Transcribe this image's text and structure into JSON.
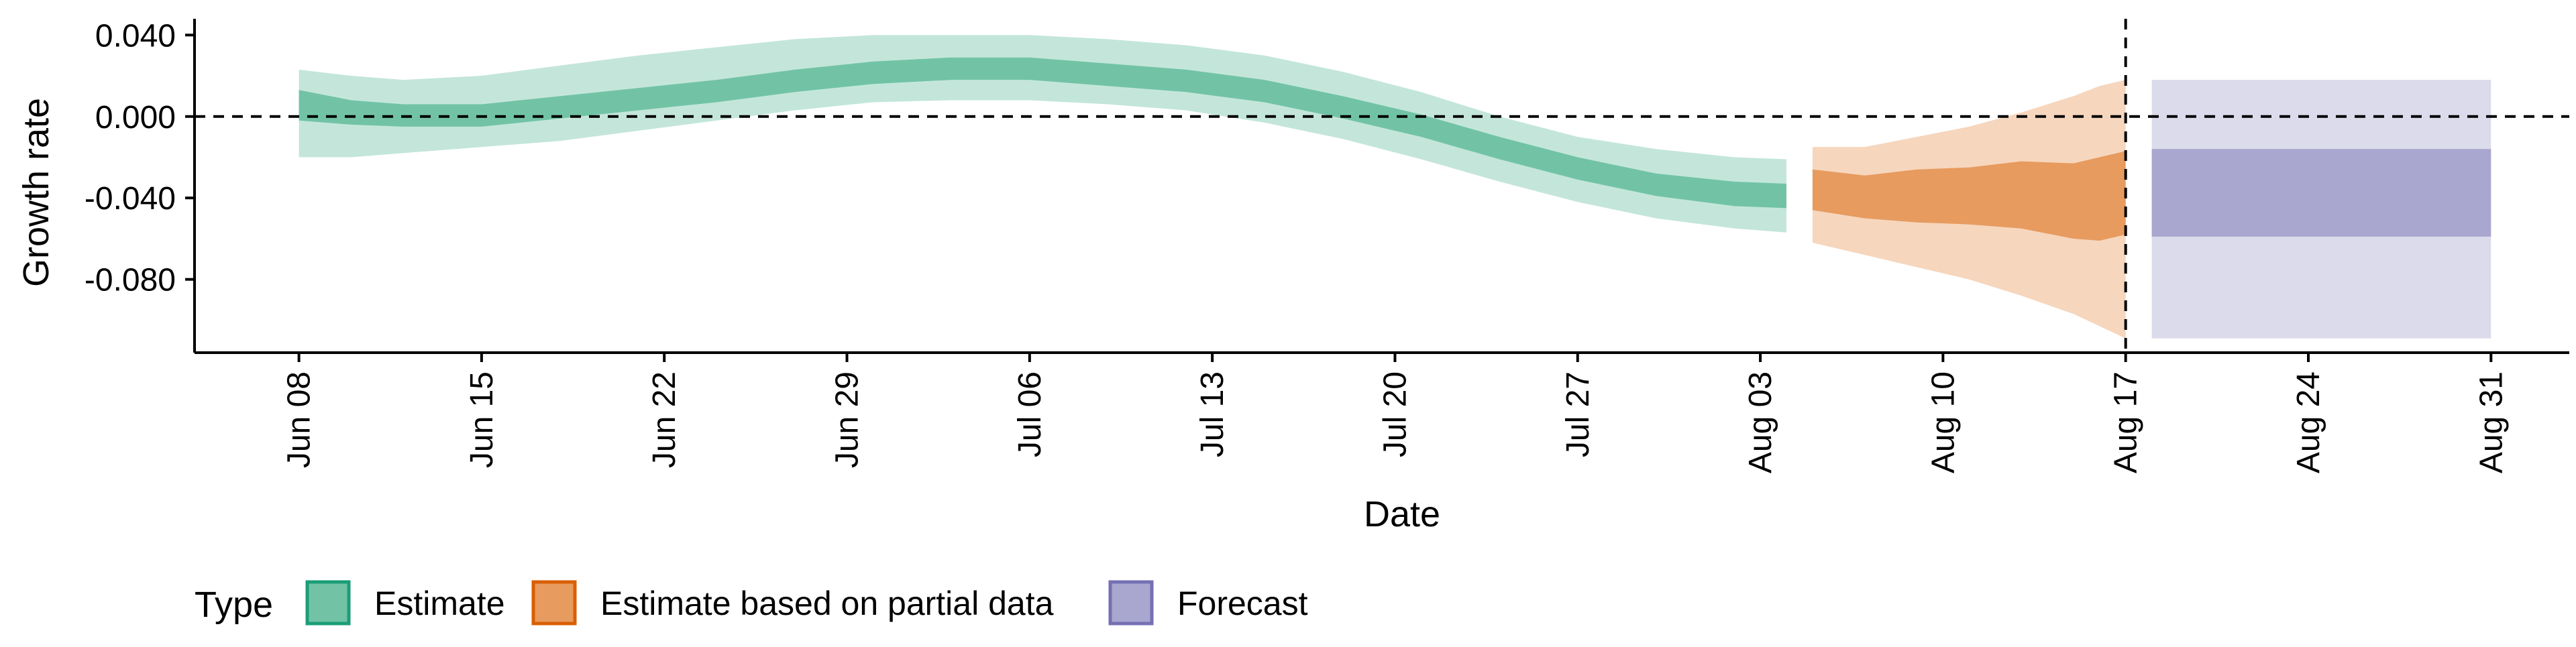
{
  "chart_data": {
    "type": "area",
    "title": "",
    "xlabel": "Date",
    "ylabel": "Growth rate",
    "x_tick_labels": [
      "Jun 08",
      "Jun 15",
      "Jun 22",
      "Jun 29",
      "Jul 06",
      "Jul 13",
      "Jul 20",
      "Jul 27",
      "Aug 03",
      "Aug 10",
      "Aug 17",
      "Aug 24",
      "Aug 31"
    ],
    "y_tick_labels": [
      "0.040",
      "0.000",
      "-0.040",
      "-0.080"
    ],
    "y_ticks": [
      0.04,
      0.0,
      -0.04,
      -0.08
    ],
    "xlim": [
      "2020-06-04",
      "2020-09-03"
    ],
    "ylim": [
      -0.116,
      0.048
    ],
    "reference_lines": {
      "horizontal_y": 0.0,
      "vertical_x": "2020-08-17",
      "style": "dashed"
    },
    "grid": false,
    "legend": {
      "title": "Type",
      "position": "bottom-left",
      "items": [
        {
          "name": "Estimate",
          "fill": "#72c3a6",
          "stroke": "#1b9e77"
        },
        {
          "name": "Estimate based on partial data",
          "fill": "#e79b5f",
          "stroke": "#d95f02"
        },
        {
          "name": "Forecast",
          "fill": "#a9a6cf",
          "stroke": "#7570b3"
        }
      ]
    },
    "series": [
      {
        "name": "Estimate",
        "color_inner": "#72c3a6",
        "color_outer": "#c4e6da",
        "x": [
          "2020-06-08",
          "2020-06-10",
          "2020-06-12",
          "2020-06-15",
          "2020-06-18",
          "2020-06-21",
          "2020-06-24",
          "2020-06-27",
          "2020-06-30",
          "2020-07-03",
          "2020-07-06",
          "2020-07-09",
          "2020-07-12",
          "2020-07-15",
          "2020-07-18",
          "2020-07-21",
          "2020-07-24",
          "2020-07-27",
          "2020-07-30",
          "2020-08-02",
          "2020-08-04"
        ],
        "inner_upper": [
          0.013,
          0.008,
          0.006,
          0.006,
          0.01,
          0.014,
          0.018,
          0.023,
          0.027,
          0.029,
          0.029,
          0.026,
          0.023,
          0.018,
          0.01,
          0.001,
          -0.01,
          -0.02,
          -0.028,
          -0.032,
          -0.033
        ],
        "inner_lower": [
          -0.002,
          -0.004,
          -0.005,
          -0.005,
          -0.001,
          0.003,
          0.007,
          0.012,
          0.016,
          0.018,
          0.018,
          0.015,
          0.012,
          0.007,
          -0.001,
          -0.01,
          -0.021,
          -0.031,
          -0.039,
          -0.044,
          -0.045
        ],
        "outer_upper": [
          0.023,
          0.02,
          0.018,
          0.02,
          0.025,
          0.03,
          0.034,
          0.038,
          0.04,
          0.04,
          0.04,
          0.038,
          0.035,
          0.03,
          0.022,
          0.012,
          0.0,
          -0.01,
          -0.016,
          -0.02,
          -0.021
        ],
        "outer_lower": [
          -0.02,
          -0.02,
          -0.018,
          -0.015,
          -0.012,
          -0.007,
          -0.002,
          0.003,
          0.007,
          0.008,
          0.008,
          0.006,
          0.003,
          -0.003,
          -0.011,
          -0.021,
          -0.032,
          -0.042,
          -0.05,
          -0.055,
          -0.057
        ]
      },
      {
        "name": "Estimate based on partial data",
        "color_inner": "#e79b5f",
        "color_outer": "#f6d6bd",
        "x": [
          "2020-08-05",
          "2020-08-07",
          "2020-08-09",
          "2020-08-11",
          "2020-08-13",
          "2020-08-15",
          "2020-08-16",
          "2020-08-17"
        ],
        "inner_upper": [
          -0.026,
          -0.029,
          -0.026,
          -0.025,
          -0.022,
          -0.023,
          -0.02,
          -0.017
        ],
        "inner_lower": [
          -0.046,
          -0.05,
          -0.052,
          -0.053,
          -0.055,
          -0.06,
          -0.061,
          -0.058
        ],
        "outer_upper": [
          -0.015,
          -0.015,
          -0.01,
          -0.005,
          0.002,
          0.01,
          0.015,
          0.018
        ],
        "outer_lower": [
          -0.062,
          -0.068,
          -0.074,
          -0.08,
          -0.088,
          -0.097,
          -0.103,
          -0.109
        ]
      },
      {
        "name": "Forecast",
        "color_inner": "#a9a6cf",
        "color_outer": "#dcdbeb",
        "x": [
          "2020-08-18",
          "2020-08-31"
        ],
        "inner_upper": [
          -0.016,
          -0.016
        ],
        "inner_lower": [
          -0.059,
          -0.059
        ],
        "outer_upper": [
          0.018,
          0.018
        ],
        "outer_lower": [
          -0.109,
          -0.109
        ]
      }
    ]
  }
}
